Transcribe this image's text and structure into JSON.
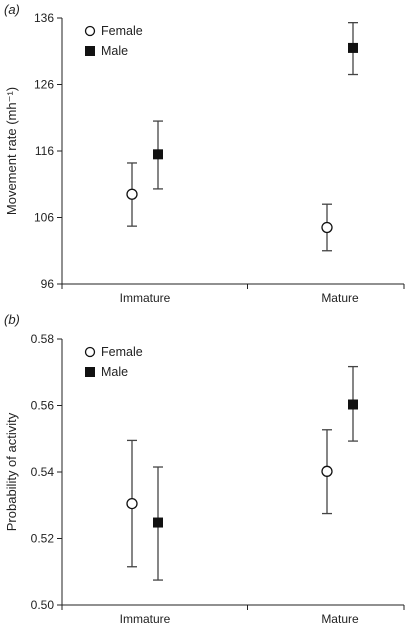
{
  "colors": {
    "axis": "#222222",
    "errorbar": "#444444",
    "female_marker_fill": "#ffffff",
    "male_marker_fill": "#111111"
  },
  "chart_data": [
    {
      "type": "scatter",
      "panel_label": "(a)",
      "ylabel": "Movement rate (mh⁻¹)",
      "xlabel": "",
      "categories": [
        "Immature",
        "Mature"
      ],
      "ylim": [
        96,
        136
      ],
      "yticks": [
        96,
        106,
        116,
        126,
        136
      ],
      "ytick_labels": [
        "96",
        "106",
        "116",
        "126",
        "136"
      ],
      "grid": false,
      "legend_position": "top-left",
      "series": [
        {
          "name": "Female",
          "marker": "open-circle",
          "values": [
            109.5,
            104.5
          ],
          "err_low": [
            104.7,
            101
          ],
          "err_high": [
            114.2,
            108
          ]
        },
        {
          "name": "Male",
          "marker": "filled-square",
          "values": [
            115.5,
            131.5
          ],
          "err_low": [
            110.3,
            127.5
          ],
          "err_high": [
            120.5,
            135.3
          ]
        }
      ]
    },
    {
      "type": "scatter",
      "panel_label": "(b)",
      "ylabel": "Probability of activity",
      "xlabel": "",
      "categories": [
        "Immature",
        "Mature"
      ],
      "ylim": [
        0.5,
        0.58
      ],
      "yticks": [
        0.5,
        0.52,
        0.54,
        0.56,
        0.58
      ],
      "ytick_labels": [
        "0.50",
        "0.52",
        "0.54",
        "0.56",
        "0.58"
      ],
      "grid": false,
      "legend_position": "top-left",
      "series": [
        {
          "name": "Female",
          "marker": "open-circle",
          "values": [
            0.5305,
            0.5402
          ],
          "err_low": [
            0.5115,
            0.5275
          ],
          "err_high": [
            0.5495,
            0.5527
          ]
        },
        {
          "name": "Male",
          "marker": "filled-square",
          "values": [
            0.5248,
            0.5603
          ],
          "err_low": [
            0.5075,
            0.5493
          ],
          "err_high": [
            0.5415,
            0.5717
          ]
        }
      ]
    }
  ]
}
